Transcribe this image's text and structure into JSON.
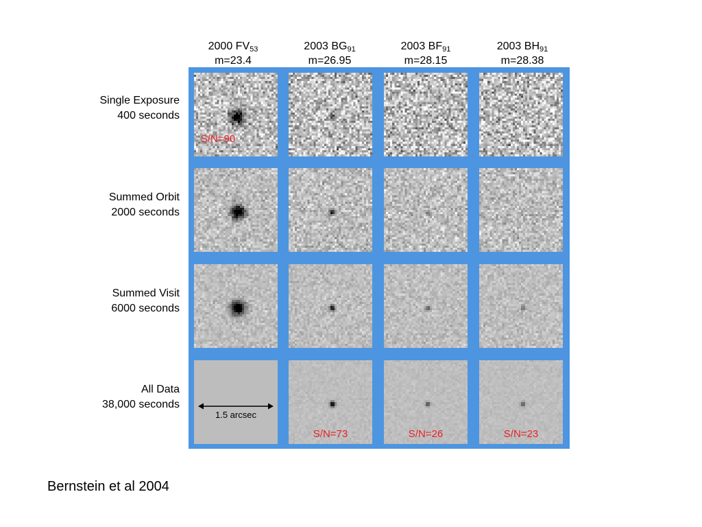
{
  "columns": [
    {
      "base": "2000 FV",
      "sub": "53",
      "mag": "m=23.4"
    },
    {
      "base": "2003 BG",
      "sub": "91",
      "mag": "m=26.95"
    },
    {
      "base": "2003 BF",
      "sub": "91",
      "mag": "m=28.15"
    },
    {
      "base": "2003 BH",
      "sub": "91",
      "mag": "m=28.38"
    }
  ],
  "rows": [
    {
      "line1": "Single Exposure",
      "line2": "400 seconds"
    },
    {
      "line1": "Summed Orbit",
      "line2": "2000 seconds"
    },
    {
      "line1": "Summed Visit",
      "line2": "6000 seconds"
    },
    {
      "line1": "All Data",
      "line2": "38,000 seconds"
    }
  ],
  "snr": {
    "single_fv53": "S/N=90",
    "all_bg91": "S/N=73",
    "all_bf91": "S/N=26",
    "all_bh91": "S/N=23"
  },
  "scale_bar_label": "1.5 arcsec",
  "credit": "Bernstein et al 2004",
  "colors": {
    "frame": "#4d95e0",
    "snr_text": "#e8202a",
    "empty_panel": "#bdbdbd"
  }
}
